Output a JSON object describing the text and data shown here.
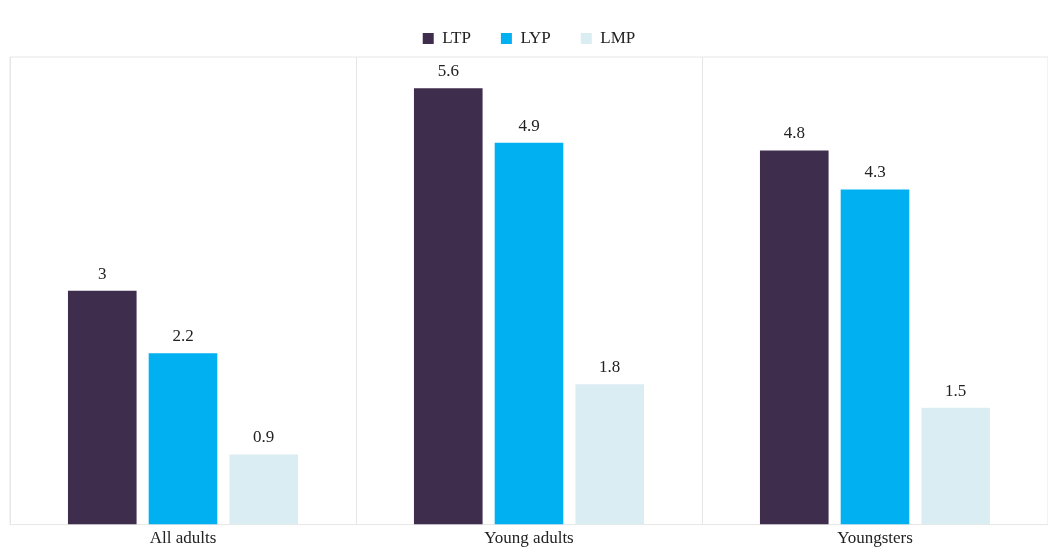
{
  "chart_data": {
    "type": "bar",
    "categories": [
      "All adults",
      "Young adults",
      "Youngsters"
    ],
    "series": [
      {
        "name": "LTP",
        "color": "#3f2d4d",
        "values": [
          3,
          5.6,
          4.8
        ]
      },
      {
        "name": "LYP",
        "color": "#00b0f0",
        "values": [
          2.2,
          4.9,
          4.3
        ]
      },
      {
        "name": "LMP",
        "color": "#daedf3",
        "values": [
          0.9,
          1.8,
          1.5
        ]
      }
    ],
    "ylim": [
      0,
      6
    ],
    "data_labels": true,
    "legend": "top",
    "grid": "x",
    "tick_labels": "x"
  }
}
